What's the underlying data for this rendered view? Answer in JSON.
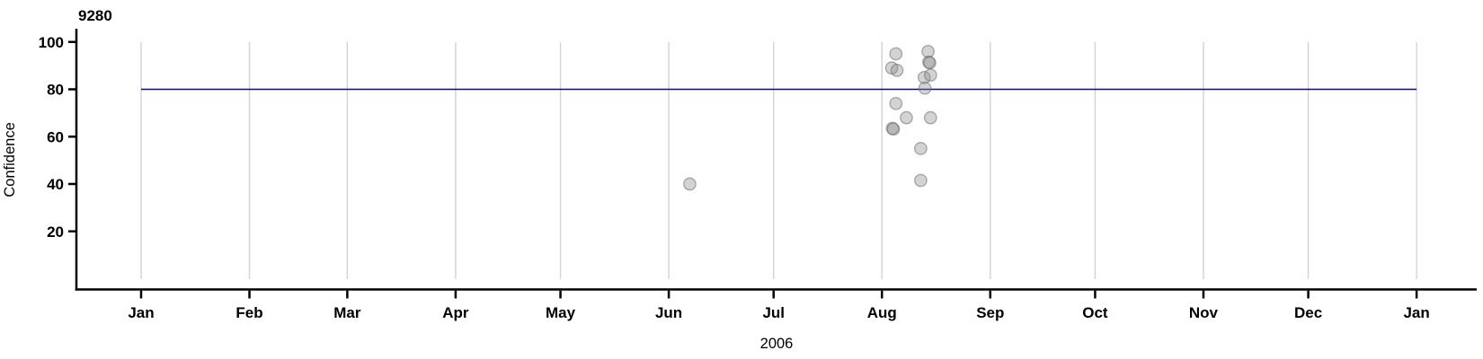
{
  "chart_data": {
    "type": "scatter",
    "title": "9280",
    "ylabel": "Confidence",
    "xlabel_year": "2006",
    "x_axis": {
      "unit": "months",
      "tick_labels": [
        "Jan",
        "Feb",
        "Mar",
        "Apr",
        "May",
        "Jun",
        "Jul",
        "Aug",
        "Sep",
        "Oct",
        "Nov",
        "Dec",
        "Jan"
      ],
      "tick_day_offsets": [
        0,
        31,
        59,
        90,
        120,
        151,
        181,
        212,
        243,
        273,
        304,
        334,
        365
      ],
      "range_days": [
        0,
        365
      ],
      "grid": true
    },
    "y_axis": {
      "tick_values": [
        20,
        40,
        60,
        80,
        100
      ],
      "data_range": [
        0,
        100
      ],
      "grid": false
    },
    "reference_line": {
      "value": 80,
      "color": "#0000cc",
      "span_days": [
        0,
        365
      ]
    },
    "points": [
      {
        "approx_date": "2006-06-07",
        "day": 157.0,
        "value": 40.0,
        "count": 1
      },
      {
        "approx_date": "2006-08-04",
        "day": 214.8,
        "value": 89.0,
        "count": 1
      },
      {
        "approx_date": "2006-08-04",
        "day": 215.0,
        "value": 63.5,
        "count": 2
      },
      {
        "approx_date": "2006-08-05",
        "day": 216.0,
        "value": 95.0,
        "count": 1
      },
      {
        "approx_date": "2006-08-05",
        "day": 216.0,
        "value": 74.0,
        "count": 1
      },
      {
        "approx_date": "2006-08-05",
        "day": 216.3,
        "value": 88.0,
        "count": 1
      },
      {
        "approx_date": "2006-08-08",
        "day": 219.0,
        "value": 68.0,
        "count": 1
      },
      {
        "approx_date": "2006-08-12",
        "day": 223.1,
        "value": 55.0,
        "count": 1
      },
      {
        "approx_date": "2006-08-12",
        "day": 223.1,
        "value": 41.5,
        "count": 1
      },
      {
        "approx_date": "2006-08-13",
        "day": 224.1,
        "value": 85.0,
        "count": 1
      },
      {
        "approx_date": "2006-08-13",
        "day": 224.3,
        "value": 80.5,
        "count": 1
      },
      {
        "approx_date": "2006-08-14",
        "day": 225.2,
        "value": 96.0,
        "count": 1
      },
      {
        "approx_date": "2006-08-14",
        "day": 225.4,
        "value": 91.5,
        "count": 2
      },
      {
        "approx_date": "2006-08-15",
        "day": 225.9,
        "value": 86.0,
        "count": 1
      },
      {
        "approx_date": "2006-08-15",
        "day": 225.9,
        "value": 68.0,
        "count": 1
      }
    ],
    "style": {
      "point_fill": "#8c8c8c",
      "point_fill_opacity": 0.38,
      "point_stroke": "#6a6a6a",
      "point_stroke_opacity": 0.55,
      "point_radius": 6.7,
      "grid_color": "#d3d3d3",
      "axis_color": "#000000",
      "background": "#ffffff"
    }
  }
}
